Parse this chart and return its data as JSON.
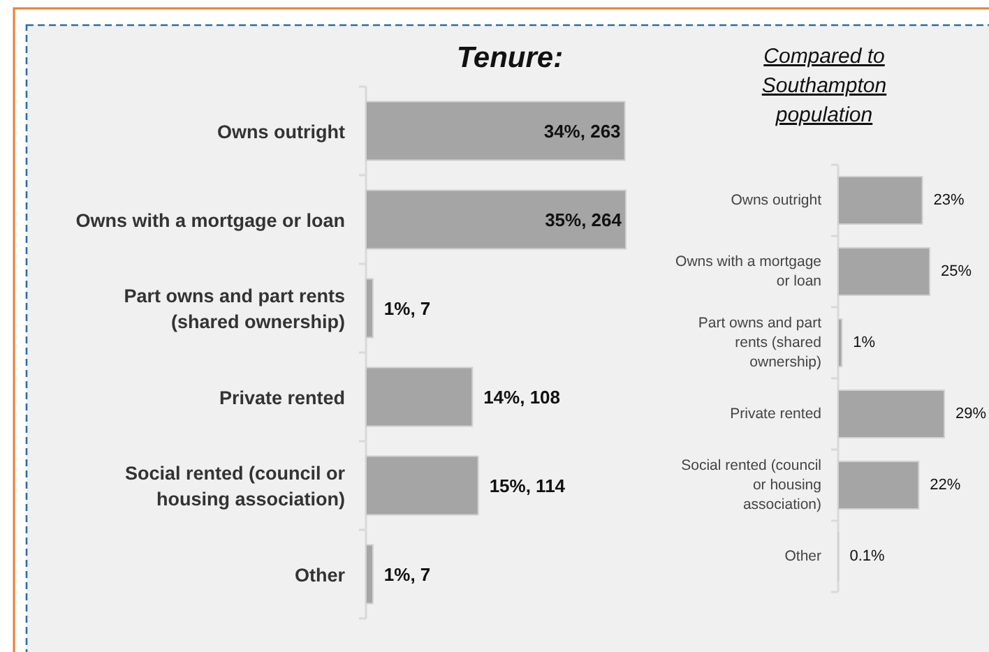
{
  "chart_data": [
    {
      "type": "bar",
      "orientation": "horizontal",
      "title": "Tenure:",
      "categories": [
        "Owns outright",
        "Owns with a mortgage or loan",
        "Part owns and part rents (shared ownership)",
        "Private rented",
        "Social rented (council or housing association)",
        "Other"
      ],
      "values": [
        263,
        264,
        7,
        108,
        114,
        7
      ],
      "color": "#a5a5a5",
      "value_labels": [
        "34%, 263",
        "35%, 264",
        "1%, 7",
        "14%, 108",
        "15%, 114",
        "1%, 7"
      ]
    },
    {
      "type": "bar",
      "orientation": "horizontal",
      "title": "Compared to Southampton population",
      "categories": [
        "Owns outright",
        "Owns with a mortgage or loan",
        "Part owns and part rents (shared ownership)",
        "Private rented",
        "Social rented (council or housing association)",
        "Other"
      ],
      "values": [
        23,
        25,
        1,
        29,
        22,
        0.1
      ],
      "color": "#a5a5a5",
      "value_labels": [
        "23%",
        "25%",
        "1%",
        "29%",
        "22%",
        "0.1%"
      ]
    }
  ]
}
